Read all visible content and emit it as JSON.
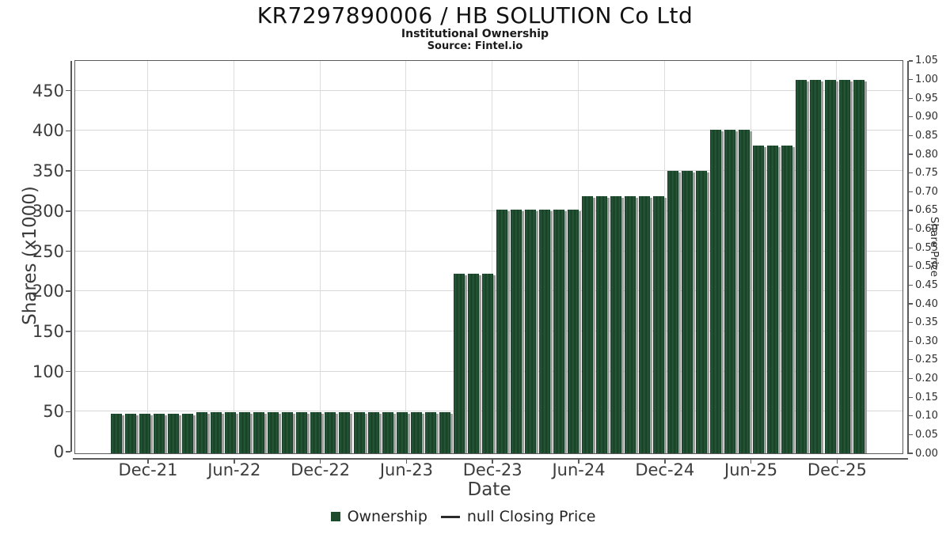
{
  "header": {
    "title": "KR7297890006 / HB SOLUTION Co Ltd",
    "subtitle": "Institutional Ownership",
    "source": "Source: Fintel.io"
  },
  "colors": {
    "bar": "#1d4b2c",
    "bar_shadow": "#9e9e9e",
    "grid": "#d8d8d8",
    "spine": "#5a5a5c",
    "text": "#262626"
  },
  "chart_data": {
    "type": "bar",
    "title": "KR7297890006 / HB SOLUTION Co Ltd",
    "subtitle": "Institutional Ownership",
    "source": "Source: Fintel.io",
    "xlabel": "Date",
    "ylabel_left": "Shares (x1000)",
    "ylabel_right": "Share Price",
    "x_tick_labels": [
      "Dec-21",
      "Jun-22",
      "Dec-22",
      "Jun-23",
      "Dec-23",
      "Jun-24",
      "Dec-24",
      "Jun-25",
      "Dec-25"
    ],
    "y_left_ticks": [
      0,
      50,
      100,
      150,
      200,
      250,
      300,
      350,
      400,
      450
    ],
    "y_left_range": [
      0,
      490
    ],
    "y_right_tick_labels": [
      "0.00",
      "0.05",
      "0.10",
      "0.15",
      "0.20",
      "0.25",
      "0.30",
      "0.35",
      "0.40",
      "0.45",
      "0.50",
      "0.55",
      "0.60",
      "0.65",
      "0.70",
      "0.75",
      "0.80",
      "0.85",
      "0.90",
      "0.95",
      "1.00",
      "1.05"
    ],
    "y_right_range": [
      0,
      1.05
    ],
    "grid": true,
    "legend_position": "bottom-center",
    "series": [
      {
        "name": "Ownership",
        "unit": "shares x1000",
        "values": [
          47,
          47,
          47,
          47,
          47,
          47,
          49,
          49,
          49,
          49,
          49,
          49,
          49,
          49,
          49,
          49,
          49,
          49,
          49,
          49,
          49,
          49,
          49,
          49,
          222,
          222,
          222,
          302,
          302,
          302,
          302,
          302,
          302,
          319,
          319,
          319,
          319,
          319,
          319,
          350,
          350,
          350,
          401,
          401,
          401,
          382,
          382,
          382,
          464,
          464,
          464,
          464,
          464
        ]
      },
      {
        "name": "null Closing Price",
        "unit": "share price",
        "values": []
      }
    ],
    "legend": [
      {
        "label": "Ownership",
        "marker": "square",
        "color": "#1d4b2c"
      },
      {
        "label": "null Closing Price",
        "marker": "line",
        "color": "#2b2b2b"
      }
    ]
  }
}
